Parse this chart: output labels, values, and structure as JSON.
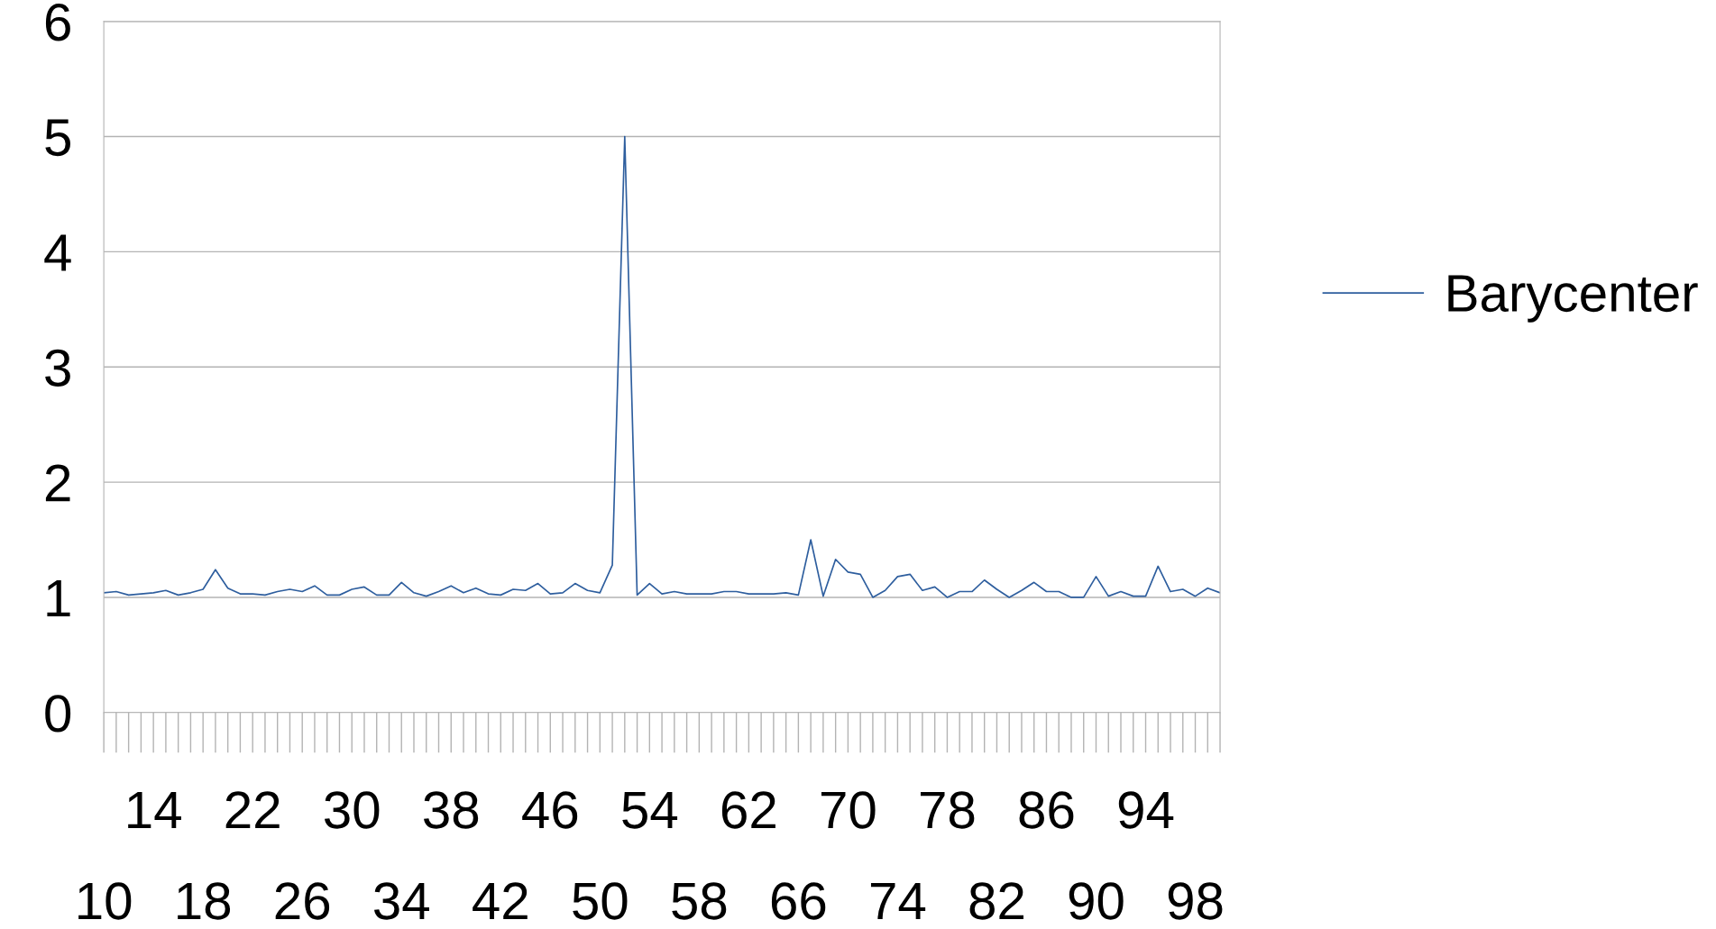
{
  "chart_data": {
    "type": "line",
    "categories": [
      "10",
      null,
      null,
      null,
      "14",
      null,
      null,
      null,
      "18",
      null,
      null,
      null,
      "22",
      null,
      null,
      null,
      "26",
      null,
      null,
      null,
      "30",
      null,
      null,
      null,
      "34",
      null,
      null,
      null,
      "38",
      null,
      null,
      null,
      "42",
      null,
      null,
      null,
      "46",
      null,
      null,
      null,
      "50",
      null,
      null,
      null,
      "54",
      null,
      null,
      null,
      "58",
      null,
      null,
      null,
      "62",
      null,
      null,
      null,
      "66",
      null,
      null,
      null,
      "70",
      null,
      null,
      null,
      "74",
      null,
      null,
      null,
      "78",
      null,
      null,
      null,
      "82",
      null,
      null,
      null,
      "86",
      null,
      null,
      null,
      "90",
      null,
      null,
      null,
      "94",
      null,
      null,
      null,
      "98",
      null,
      null
    ],
    "series": [
      {
        "name": "Barycenter",
        "color": "#2e5e9e",
        "values": [
          1.04,
          1.05,
          1.02,
          1.03,
          1.04,
          1.06,
          1.02,
          1.04,
          1.07,
          1.24,
          1.08,
          1.03,
          1.03,
          1.02,
          1.05,
          1.07,
          1.05,
          1.1,
          1.02,
          1.02,
          1.07,
          1.09,
          1.02,
          1.02,
          1.13,
          1.04,
          1.01,
          1.05,
          1.1,
          1.04,
          1.08,
          1.03,
          1.02,
          1.07,
          1.06,
          1.12,
          1.03,
          1.04,
          1.12,
          1.06,
          1.04,
          1.28,
          5,
          1.02,
          1.12,
          1.03,
          1.05,
          1.03,
          1.03,
          1.03,
          1.05,
          1.05,
          1.03,
          1.03,
          1.03,
          1.04,
          1.02,
          1.5,
          1.01,
          1.33,
          1.22,
          1.2,
          1.0,
          1.06,
          1.18,
          1.2,
          1.06,
          1.09,
          1.0,
          1.05,
          1.05,
          1.15,
          1.07,
          1.0,
          1.06,
          1.13,
          1.05,
          1.05,
          1.0,
          1.0,
          1.18,
          1.01,
          1.05,
          1.01,
          1.01,
          1.27,
          1.05,
          1.07,
          1.01,
          1.08,
          1.04
        ]
      }
    ],
    "ylim": [
      0,
      6
    ],
    "yticks": [
      0,
      1,
      2,
      3,
      4,
      5,
      6
    ],
    "grid": "y",
    "legend": "right",
    "marker": "none",
    "line_style": "solid"
  }
}
